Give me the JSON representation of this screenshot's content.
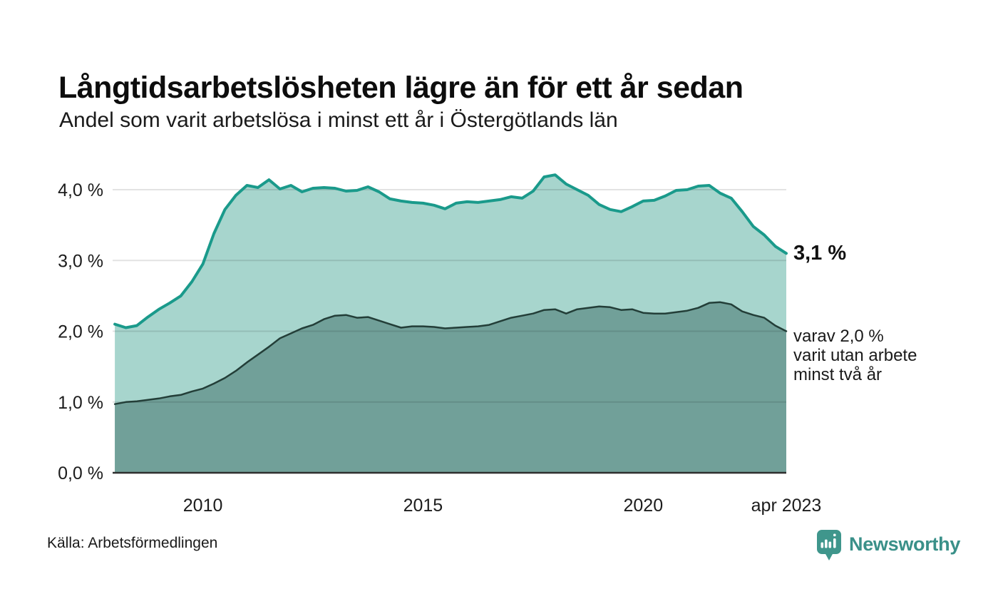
{
  "header": {
    "title": "Långtidsarbetslösheten lägre än för ett år sedan",
    "subtitle": "Andel som varit arbetslösa i minst ett år i Östergötlands län"
  },
  "annotations": {
    "latest_value": "3,1 %",
    "secondary_lines": [
      "varav 2,0 %",
      "varit utan arbete",
      "minst två år"
    ]
  },
  "footer": {
    "source": "Källa: Arbetsförmedlingen",
    "brand": "Newsworthy"
  },
  "colors": {
    "background": "#ffffff",
    "grid_overlay": "rgba(0,0,0,0.11)",
    "axis_baseline": "#2f2f2f",
    "text": "#1a1a1a",
    "brand_teal": "#3a9089"
  },
  "chart_data": {
    "type": "area",
    "title": "Långtidsarbetslösheten lägre än för ett år sedan",
    "subtitle": "Andel som varit arbetslösa i minst ett år i Östergötlands län",
    "xlabel": "",
    "ylabel": "",
    "legend": "none (direct labels at line ends)",
    "grid": "horizontal",
    "xlim": [
      2007.95,
      2023.25
    ],
    "ylim": [
      0,
      4.4
    ],
    "x": [
      2008,
      2008.25,
      2008.5,
      2008.75,
      2009,
      2009.25,
      2009.5,
      2009.75,
      2010,
      2010.25,
      2010.5,
      2010.75,
      2011,
      2011.25,
      2011.5,
      2011.75,
      2012,
      2012.25,
      2012.5,
      2012.75,
      2013,
      2013.25,
      2013.5,
      2013.75,
      2014,
      2014.25,
      2014.5,
      2014.75,
      2015,
      2015.25,
      2015.5,
      2015.75,
      2016,
      2016.25,
      2016.5,
      2016.75,
      2017,
      2017.25,
      2017.5,
      2017.75,
      2018,
      2018.25,
      2018.5,
      2018.75,
      2019,
      2019.25,
      2019.5,
      2019.75,
      2020,
      2020.25,
      2020.5,
      2020.75,
      2021,
      2021.25,
      2021.5,
      2021.75,
      2022,
      2022.25,
      2022.5,
      2022.75,
      2023,
      2023.25
    ],
    "series": [
      {
        "id": "minst-ett-ar",
        "name": "Arbetslösa minst ett år",
        "end_label": "3,1 %",
        "color": "#1a9a8b",
        "fill": "#a7d5cd",
        "stroke_width": 4,
        "values": [
          2.1,
          2.05,
          2.08,
          2.2,
          2.31,
          2.4,
          2.5,
          2.7,
          2.95,
          3.38,
          3.72,
          3.92,
          4.06,
          4.03,
          4.14,
          4.01,
          4.06,
          3.97,
          4.02,
          4.03,
          4.02,
          3.98,
          3.99,
          4.04,
          3.97,
          3.87,
          3.84,
          3.82,
          3.81,
          3.78,
          3.73,
          3.81,
          3.83,
          3.82,
          3.84,
          3.86,
          3.9,
          3.88,
          3.98,
          4.18,
          4.21,
          4.08,
          4.0,
          3.92,
          3.79,
          3.72,
          3.69,
          3.76,
          3.84,
          3.85,
          3.91,
          3.99,
          4.0,
          4.05,
          4.06,
          3.95,
          3.88,
          3.69,
          3.48,
          3.36,
          3.2,
          3.1
        ]
      },
      {
        "id": "minst-tva-ar",
        "name": "Arbetslösa minst två år",
        "end_label": "varav 2,0 % varit utan arbete minst två år",
        "color": "#233e38",
        "fill": "#71a099",
        "stroke_width": 2.5,
        "values": [
          0.97,
          1.0,
          1.01,
          1.03,
          1.05,
          1.08,
          1.1,
          1.15,
          1.19,
          1.26,
          1.34,
          1.44,
          1.56,
          1.67,
          1.78,
          1.9,
          1.97,
          2.04,
          2.09,
          2.17,
          2.22,
          2.23,
          2.19,
          2.2,
          2.15,
          2.1,
          2.05,
          2.07,
          2.07,
          2.06,
          2.04,
          2.05,
          2.06,
          2.07,
          2.09,
          2.14,
          2.19,
          2.22,
          2.25,
          2.3,
          2.31,
          2.25,
          2.31,
          2.33,
          2.35,
          2.34,
          2.3,
          2.31,
          2.26,
          2.25,
          2.25,
          2.27,
          2.29,
          2.33,
          2.4,
          2.41,
          2.38,
          2.28,
          2.23,
          2.19,
          2.08,
          2.0
        ]
      }
    ],
    "y_ticks": [
      {
        "value": 0,
        "label": "0,0 %"
      },
      {
        "value": 1,
        "label": "1,0 %"
      },
      {
        "value": 2,
        "label": "2,0 %"
      },
      {
        "value": 3,
        "label": "3,0 %"
      },
      {
        "value": 4,
        "label": "4,0 %"
      }
    ],
    "x_ticks": [
      {
        "value": 2010,
        "label": "2010"
      },
      {
        "value": 2015,
        "label": "2015"
      },
      {
        "value": 2020,
        "label": "2020"
      },
      {
        "value": 2023.25,
        "label": "apr 2023"
      }
    ]
  }
}
